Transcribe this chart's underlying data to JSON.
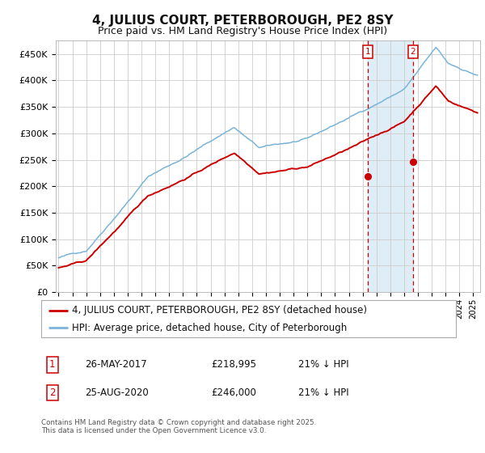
{
  "title": "4, JULIUS COURT, PETERBOROUGH, PE2 8SY",
  "subtitle": "Price paid vs. HM Land Registry's House Price Index (HPI)",
  "ylim": [
    0,
    475000
  ],
  "yticks": [
    0,
    50000,
    100000,
    150000,
    200000,
    250000,
    300000,
    350000,
    400000,
    450000
  ],
  "ytick_labels": [
    "£0",
    "£50K",
    "£100K",
    "£150K",
    "£200K",
    "£250K",
    "£300K",
    "£350K",
    "£400K",
    "£450K"
  ],
  "hpi_color": "#7ab4d8",
  "price_color": "#cc0000",
  "vline_color": "#cc0000",
  "shade_color": "#daeaf5",
  "annotation_box_color": "#cc0000",
  "sale1_date": 2017.38,
  "sale1_price": 218995,
  "sale2_date": 2020.65,
  "sale2_price": 246000,
  "legend_entry1": "4, JULIUS COURT, PETERBOROUGH, PE2 8SY (detached house)",
  "legend_entry2": "HPI: Average price, detached house, City of Peterborough",
  "table_row1": [
    "1",
    "26-MAY-2017",
    "£218,995",
    "21% ↓ HPI"
  ],
  "table_row2": [
    "2",
    "25-AUG-2020",
    "£246,000",
    "21% ↓ HPI"
  ],
  "footer": "Contains HM Land Registry data © Crown copyright and database right 2025.\nThis data is licensed under the Open Government Licence v3.0.",
  "background_color": "#ffffff",
  "grid_color": "#cccccc",
  "title_fontsize": 11,
  "subtitle_fontsize": 9,
  "tick_fontsize": 8,
  "legend_fontsize": 8.5
}
